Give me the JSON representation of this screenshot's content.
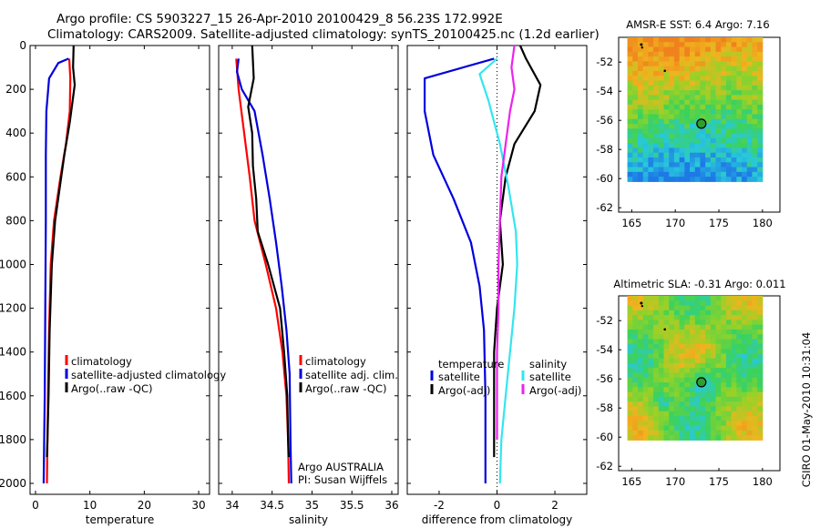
{
  "figure": {
    "title_line1": "Argo profile: CS 5903227_15 26-Apr-2010 20100429_8 56.23S 172.992E",
    "title_line2": "Climatology: CARS2009. Satellite-adjusted climatology: synTS_20100425.nc (1.2d earlier)",
    "credit": "CSIRO 01-May-2010 10:31:04"
  },
  "colors": {
    "climatology": "#ff0000",
    "satellite": "#0000dd",
    "argo": "#000000",
    "sat_salinity": "#33e6ee",
    "argo_adj_salinity": "#ee22ee"
  },
  "chart_data": [
    {
      "id": "temperature",
      "type": "line",
      "xlabel": "temperature",
      "ylabel": "",
      "xlim": [
        -1,
        32
      ],
      "ylim": [
        2050,
        0
      ],
      "xticks": [
        0,
        10,
        20,
        30
      ],
      "yticks": [
        0,
        200,
        400,
        600,
        800,
        1000,
        1200,
        1400,
        1600,
        1800,
        2000
      ],
      "legend": {
        "placement": "lower-center",
        "entries": [
          "climatology",
          "satellite-adjusted climatology",
          "Argo(..raw -QC)"
        ]
      },
      "series": [
        {
          "name": "climatology",
          "color": "#ff0000",
          "points": [
            [
              6.2,
              60
            ],
            [
              6.4,
              150
            ],
            [
              6.3,
              300
            ],
            [
              5.6,
              450
            ],
            [
              4.6,
              600
            ],
            [
              3.4,
              800
            ],
            [
              2.8,
              1000
            ],
            [
              2.5,
              1300
            ],
            [
              2.3,
              1600
            ],
            [
              2.2,
              1800
            ],
            [
              2.1,
              2000
            ]
          ]
        },
        {
          "name": "satellite-adjusted climatology",
          "color": "#0000dd",
          "points": [
            [
              6.1,
              60
            ],
            [
              4.2,
              80
            ],
            [
              2.5,
              150
            ],
            [
              2.0,
              300
            ],
            [
              1.9,
              500
            ],
            [
              1.9,
              800
            ],
            [
              1.8,
              1200
            ],
            [
              1.7,
              1600
            ],
            [
              1.6,
              1800
            ],
            [
              1.5,
              2000
            ]
          ]
        },
        {
          "name": "Argo(..raw -QC)",
          "color": "#000000",
          "points": [
            [
              7.0,
              0
            ],
            [
              6.9,
              100
            ],
            [
              7.2,
              180
            ],
            [
              6.3,
              350
            ],
            [
              5.3,
              500
            ],
            [
              3.6,
              800
            ],
            [
              3.0,
              1000
            ],
            [
              2.6,
              1300
            ],
            [
              2.4,
              1600
            ],
            [
              2.2,
              1800
            ],
            [
              2.1,
              1880
            ]
          ]
        }
      ]
    },
    {
      "id": "salinity",
      "type": "line",
      "xlabel": "salinity",
      "ylabel": "",
      "xlim": [
        33.83,
        36.08
      ],
      "ylim": [
        2050,
        0
      ],
      "xticks": [
        34,
        34.5,
        35,
        35.5,
        36
      ],
      "legend": {
        "placement": "lower-right",
        "entries": [
          "climatology",
          "satellite adj. clim.",
          "Argo(..raw -QC)"
        ]
      },
      "annotations": [
        "Argo AUSTRALIA",
        "PI: Susan Wijffels"
      ],
      "series": [
        {
          "name": "climatology",
          "color": "#ff0000",
          "points": [
            [
              34.05,
              60
            ],
            [
              34.08,
              200
            ],
            [
              34.15,
              400
            ],
            [
              34.22,
              600
            ],
            [
              34.28,
              800
            ],
            [
              34.42,
              1000
            ],
            [
              34.55,
              1200
            ],
            [
              34.63,
              1400
            ],
            [
              34.68,
              1600
            ],
            [
              34.7,
              1800
            ],
            [
              34.71,
              2000
            ]
          ]
        },
        {
          "name": "satellite adj. clim.",
          "color": "#0000dd",
          "points": [
            [
              34.08,
              60
            ],
            [
              34.06,
              120
            ],
            [
              34.12,
              200
            ],
            [
              34.28,
              300
            ],
            [
              34.38,
              500
            ],
            [
              34.47,
              700
            ],
            [
              34.55,
              900
            ],
            [
              34.62,
              1100
            ],
            [
              34.68,
              1300
            ],
            [
              34.72,
              1500
            ],
            [
              34.73,
              1800
            ],
            [
              34.74,
              2000
            ]
          ]
        },
        {
          "name": "Argo(..raw -QC)",
          "color": "#000000",
          "points": [
            [
              34.25,
              0
            ],
            [
              34.27,
              150
            ],
            [
              34.2,
              280
            ],
            [
              34.25,
              400
            ],
            [
              34.26,
              550
            ],
            [
              34.3,
              700
            ],
            [
              34.32,
              850
            ],
            [
              34.45,
              1000
            ],
            [
              34.6,
              1200
            ],
            [
              34.65,
              1400
            ],
            [
              34.69,
              1600
            ],
            [
              34.7,
              1800
            ],
            [
              34.71,
              1880
            ]
          ]
        }
      ]
    },
    {
      "id": "difference",
      "type": "line",
      "xlabel": "difference from climatology",
      "ylabel": "",
      "xlim": [
        -3.1,
        3.1
      ],
      "ylim": [
        2050,
        0
      ],
      "xticks": [
        -2,
        0,
        2
      ],
      "legend": {
        "placement": "lower-center",
        "entries": [
          "temperature",
          "satellite",
          "Argo(-adj)",
          "salinity",
          "satellite",
          "Argo(-adj)"
        ]
      },
      "series": [
        {
          "name": "temperature satellite",
          "color": "#0000dd",
          "points": [
            [
              -0.1,
              60
            ],
            [
              -2.5,
              150
            ],
            [
              -2.5,
              300
            ],
            [
              -2.2,
              500
            ],
            [
              -1.5,
              700
            ],
            [
              -0.9,
              900
            ],
            [
              -0.6,
              1100
            ],
            [
              -0.45,
              1300
            ],
            [
              -0.4,
              1600
            ],
            [
              -0.4,
              1800
            ],
            [
              -0.4,
              2000
            ]
          ]
        },
        {
          "name": "temperature Argo(-adj)",
          "color": "#000000",
          "points": [
            [
              0.8,
              0
            ],
            [
              1.0,
              60
            ],
            [
              1.5,
              180
            ],
            [
              1.3,
              300
            ],
            [
              0.6,
              450
            ],
            [
              0.3,
              600
            ],
            [
              0.1,
              800
            ],
            [
              0.2,
              1000
            ],
            [
              0.0,
              1200
            ],
            [
              -0.1,
              1400
            ],
            [
              -0.1,
              1600
            ],
            [
              -0.1,
              1800
            ],
            [
              -0.1,
              1880
            ]
          ]
        },
        {
          "name": "salinity satellite",
          "color": "#33e6ee",
          "points": [
            [
              0.0,
              60
            ],
            [
              -0.6,
              130
            ],
            [
              -0.3,
              250
            ],
            [
              0.1,
              450
            ],
            [
              0.4,
              650
            ],
            [
              0.65,
              850
            ],
            [
              0.7,
              1000
            ],
            [
              0.6,
              1200
            ],
            [
              0.45,
              1400
            ],
            [
              0.3,
              1600
            ],
            [
              0.15,
              1800
            ],
            [
              0.1,
              2000
            ]
          ]
        },
        {
          "name": "salinity Argo(-adj)",
          "color": "#ee22ee",
          "points": [
            [
              0.6,
              0
            ],
            [
              0.5,
              100
            ],
            [
              0.6,
              200
            ],
            [
              0.45,
              300
            ],
            [
              0.3,
              450
            ],
            [
              0.15,
              600
            ],
            [
              0.1,
              800
            ],
            [
              0.05,
              1000
            ],
            [
              0.05,
              1200
            ],
            [
              0.0,
              1400
            ],
            [
              0.0,
              1800
            ]
          ]
        }
      ]
    },
    {
      "id": "amsr-sst-map",
      "type": "heatmap",
      "title": "AMSR-E SST: 6.4 Argo: 7.16",
      "xlim": [
        163.5,
        182
      ],
      "ylim": [
        -62.3,
        -50.3
      ],
      "xticks": [
        165,
        170,
        175,
        180
      ],
      "yticks": [
        -52,
        -54,
        -56,
        -58,
        -60,
        -62
      ],
      "data_extent": {
        "lon": [
          164.5,
          180
        ],
        "lat": [
          -60.2,
          -50.3
        ]
      },
      "marker": {
        "lon": 172.992,
        "lat": -56.23
      }
    },
    {
      "id": "altimetric-sla-map",
      "type": "heatmap",
      "title": "Altimetric SLA: -0.31 Argo: 0.011",
      "xlim": [
        163.5,
        182
      ],
      "ylim": [
        -62.3,
        -50.3
      ],
      "xticks": [
        165,
        170,
        175,
        180
      ],
      "yticks": [
        -52,
        -54,
        -56,
        -58,
        -60,
        -62
      ],
      "data_extent": {
        "lon": [
          164.5,
          180
        ],
        "lat": [
          -60.2,
          -50.3
        ]
      },
      "marker": {
        "lon": 172.992,
        "lat": -56.23
      }
    }
  ]
}
